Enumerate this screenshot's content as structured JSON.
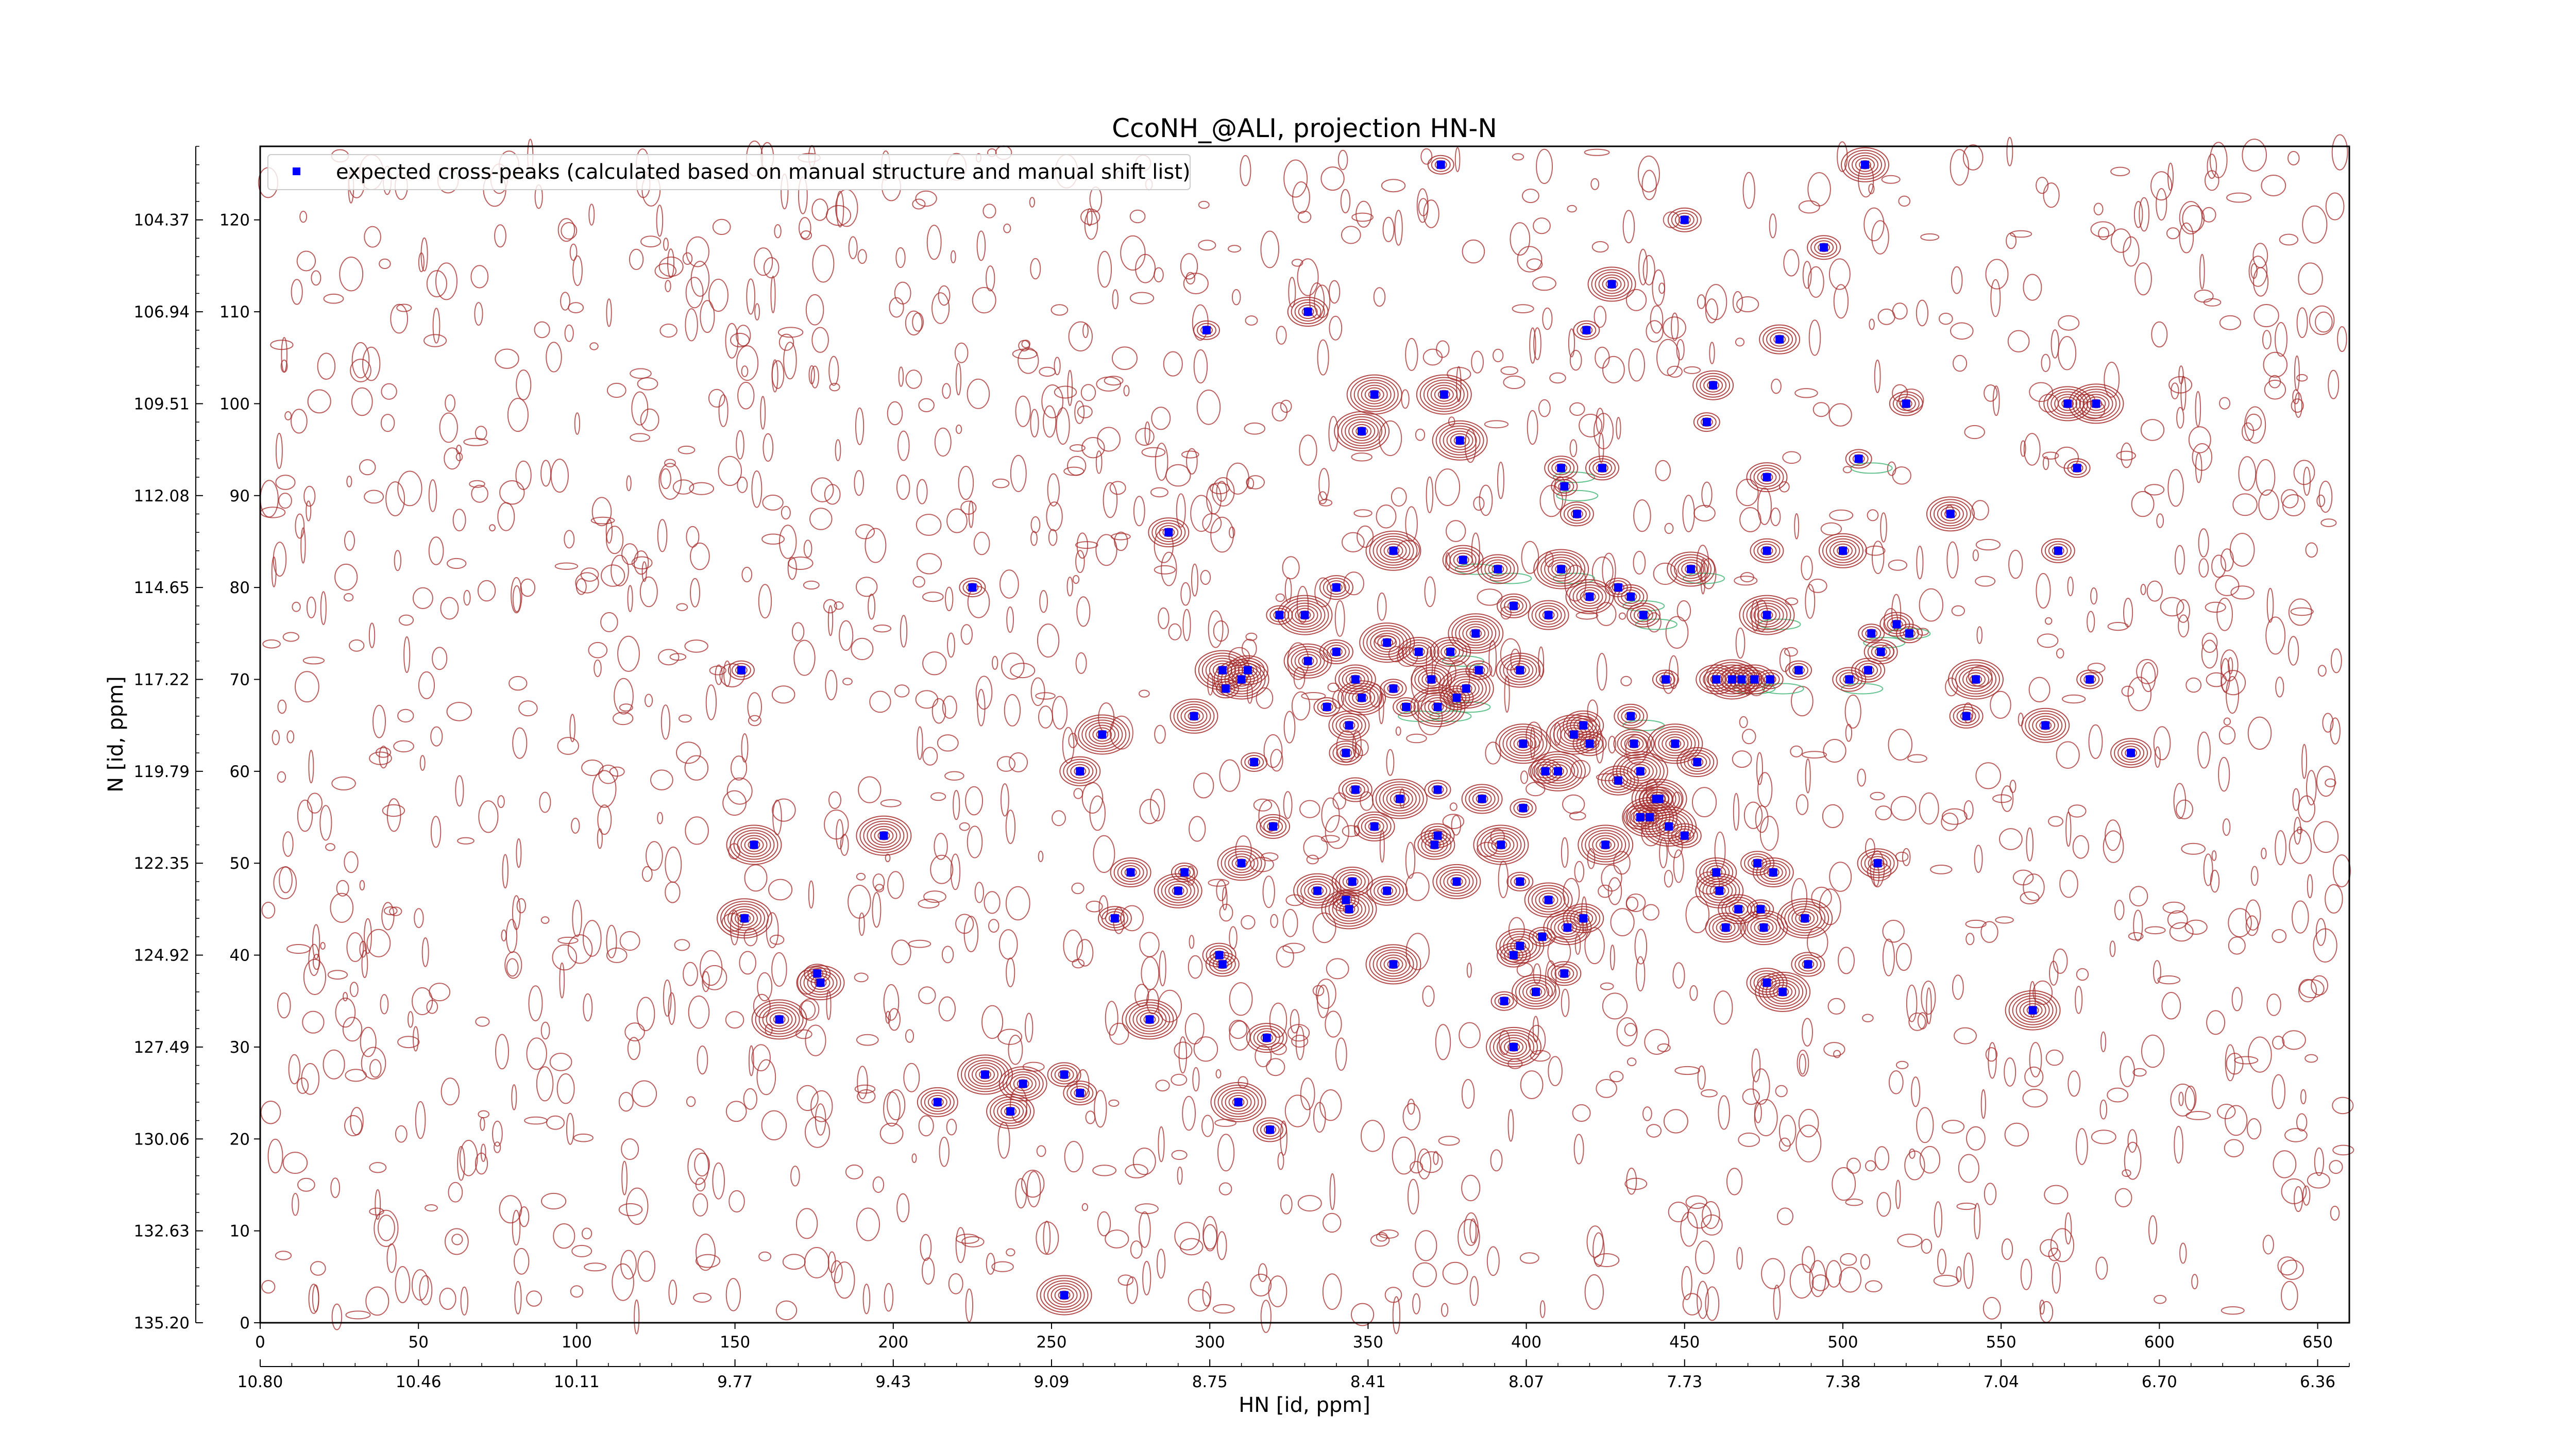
{
  "chart_data": {
    "type": "scatter",
    "title": "CcoNH_@ALI, projection HN-N",
    "xlabel": "HN [id, ppm]",
    "ylabel": "N [id, ppm]",
    "x_index_range": [
      0,
      660
    ],
    "y_index_range": [
      0,
      128
    ],
    "x_index_ticks": [
      "0",
      "50",
      "100",
      "150",
      "200",
      "250",
      "300",
      "350",
      "400",
      "450",
      "500",
      "550",
      "600",
      "650"
    ],
    "y_index_ticks": [
      "0",
      "10",
      "20",
      "30",
      "40",
      "50",
      "60",
      "70",
      "80",
      "90",
      "100",
      "110",
      "120"
    ],
    "x_ppm_ticks": [
      "10.80",
      "10.46",
      "10.11",
      "9.77",
      "9.43",
      "9.09",
      "8.75",
      "8.41",
      "8.07",
      "7.73",
      "7.38",
      "7.04",
      "6.70",
      "6.36"
    ],
    "y_ppm_ticks": [
      "135.20",
      "132.63",
      "130.06",
      "127.49",
      "124.92",
      "122.35",
      "119.79",
      "117.22",
      "114.65",
      "112.08",
      "109.51",
      "106.94",
      "104.37"
    ],
    "legend": {
      "label": "expected cross-peaks (calculated based on manual structure and manual shift list)",
      "placement": "upper-left"
    },
    "contour_colors": {
      "positive": "#a52a2a",
      "negative": "#3cb371"
    },
    "marker_color": "#0000ff",
    "series": [
      {
        "name": "expected cross-peaks (calculated based on manual structure and manual shift list)",
        "points": [
          [
            373,
            126
          ],
          [
            507,
            126
          ],
          [
            450,
            120
          ],
          [
            494,
            117
          ],
          [
            427,
            113
          ],
          [
            299,
            108
          ],
          [
            331,
            110
          ],
          [
            419,
            108
          ],
          [
            480,
            107
          ],
          [
            459,
            102
          ],
          [
            352,
            101
          ],
          [
            374,
            101
          ],
          [
            348,
            97
          ],
          [
            379,
            96
          ],
          [
            457,
            98
          ],
          [
            411,
            93
          ],
          [
            424,
            93
          ],
          [
            476,
            92
          ],
          [
            505,
            94
          ],
          [
            520,
            100
          ],
          [
            571,
            100
          ],
          [
            580,
            100
          ],
          [
            534,
            88
          ],
          [
            574,
            93
          ],
          [
            568,
            84
          ],
          [
            500,
            84
          ],
          [
            476,
            84
          ],
          [
            452,
            82
          ],
          [
            412,
            91
          ],
          [
            416,
            88
          ],
          [
            287,
            86
          ],
          [
            340,
            80
          ],
          [
            225,
            80
          ],
          [
            358,
            84
          ],
          [
            380,
            83
          ],
          [
            391,
            82
          ],
          [
            411,
            82
          ],
          [
            420,
            79
          ],
          [
            429,
            80
          ],
          [
            433,
            79
          ],
          [
            396,
            78
          ],
          [
            384,
            75
          ],
          [
            376,
            73
          ],
          [
            366,
            73
          ],
          [
            356,
            74
          ],
          [
            322,
            77
          ],
          [
            330,
            77
          ],
          [
            437,
            77
          ],
          [
            407,
            77
          ],
          [
            340,
            73
          ],
          [
            476,
            77
          ],
          [
            152,
            71
          ],
          [
            304,
            71
          ],
          [
            312,
            71
          ],
          [
            331,
            72
          ],
          [
            346,
            70
          ],
          [
            358,
            69
          ],
          [
            370,
            70
          ],
          [
            381,
            69
          ],
          [
            348,
            68
          ],
          [
            337,
            67
          ],
          [
            362,
            67
          ],
          [
            372,
            67
          ],
          [
            378,
            68
          ],
          [
            385,
            71
          ],
          [
            398,
            71
          ],
          [
            310,
            70
          ],
          [
            305,
            69
          ],
          [
            295,
            66
          ],
          [
            344,
            65
          ],
          [
            343,
            62
          ],
          [
            415,
            64
          ],
          [
            418,
            65
          ],
          [
            420,
            63
          ],
          [
            399,
            63
          ],
          [
            410,
            60
          ],
          [
            406,
            60
          ],
          [
            433,
            66
          ],
          [
            434,
            63
          ],
          [
            436,
            60
          ],
          [
            442,
            57
          ],
          [
            447,
            63
          ],
          [
            454,
            61
          ],
          [
            460,
            70
          ],
          [
            468,
            70
          ],
          [
            477,
            70
          ],
          [
            486,
            71
          ],
          [
            502,
            70
          ],
          [
            508,
            71
          ],
          [
            512,
            73
          ],
          [
            509,
            75
          ],
          [
            517,
            76
          ],
          [
            521,
            75
          ],
          [
            472,
            70
          ],
          [
            465,
            70
          ],
          [
            444,
            70
          ],
          [
            542,
            70
          ],
          [
            539,
            66
          ],
          [
            564,
            65
          ],
          [
            578,
            70
          ],
          [
            591,
            62
          ],
          [
            314,
            61
          ],
          [
            266,
            64
          ],
          [
            259,
            60
          ],
          [
            346,
            58
          ],
          [
            360,
            57
          ],
          [
            372,
            58
          ],
          [
            386,
            57
          ],
          [
            399,
            56
          ],
          [
            425,
            52
          ],
          [
            436,
            55
          ],
          [
            441,
            57
          ],
          [
            439,
            55
          ],
          [
            445,
            54
          ],
          [
            450,
            53
          ],
          [
            429,
            59
          ],
          [
            372,
            53
          ],
          [
            156,
            52
          ],
          [
            197,
            53
          ],
          [
            320,
            54
          ],
          [
            352,
            54
          ],
          [
            371,
            52
          ],
          [
            392,
            52
          ],
          [
            310,
            50
          ],
          [
            334,
            47
          ],
          [
            345,
            48
          ],
          [
            343,
            46
          ],
          [
            344,
            45
          ],
          [
            356,
            47
          ],
          [
            378,
            48
          ],
          [
            398,
            48
          ],
          [
            407,
            46
          ],
          [
            418,
            44
          ],
          [
            413,
            43
          ],
          [
            405,
            42
          ],
          [
            398,
            41
          ],
          [
            396,
            40
          ],
          [
            412,
            38
          ],
          [
            403,
            36
          ],
          [
            478,
            49
          ],
          [
            473,
            50
          ],
          [
            460,
            49
          ],
          [
            461,
            47
          ],
          [
            467,
            45
          ],
          [
            463,
            43
          ],
          [
            488,
            44
          ],
          [
            511,
            50
          ],
          [
            474,
            45
          ],
          [
            475,
            43
          ],
          [
            153,
            44
          ],
          [
            270,
            44
          ],
          [
            275,
            49
          ],
          [
            290,
            47
          ],
          [
            292,
            49
          ],
          [
            303,
            40
          ],
          [
            304,
            39
          ],
          [
            358,
            39
          ],
          [
            393,
            35
          ],
          [
            396,
            30
          ],
          [
            476,
            37
          ],
          [
            481,
            36
          ],
          [
            489,
            39
          ],
          [
            560,
            34
          ],
          [
            164,
            33
          ],
          [
            176,
            38
          ],
          [
            177,
            37
          ],
          [
            281,
            33
          ],
          [
            318,
            31
          ],
          [
            229,
            27
          ],
          [
            241,
            26
          ],
          [
            254,
            27
          ],
          [
            259,
            25
          ],
          [
            214,
            24
          ],
          [
            237,
            23
          ],
          [
            309,
            24
          ],
          [
            319,
            21
          ],
          [
            254,
            3
          ]
        ]
      }
    ]
  }
}
